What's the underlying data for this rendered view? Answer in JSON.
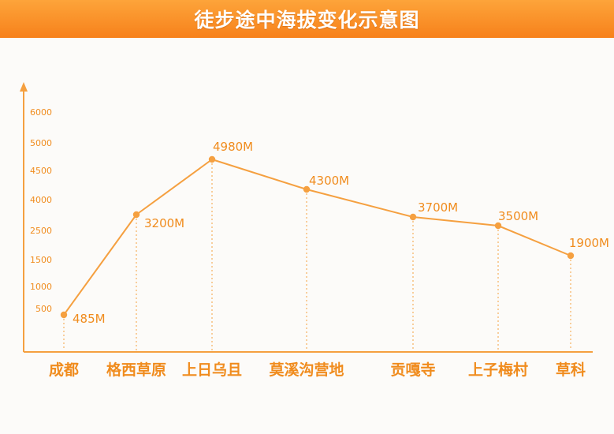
{
  "header": {
    "title": "徒步途中海拔变化示意图"
  },
  "colors": {
    "accent": "#f5a040",
    "text": "#f08c1e",
    "banner_top": "#fda43a",
    "banner_bottom": "#f7811b"
  },
  "chart_data": {
    "type": "line",
    "title": "徒步途中海拔变化示意图",
    "categories": [
      "成都",
      "格西草原",
      "上日乌且",
      "莫溪沟营地",
      "贡嘎寺",
      "上子梅村",
      "草科"
    ],
    "values": [
      485,
      3200,
      4980,
      4300,
      3700,
      3500,
      1900
    ],
    "data_labels": [
      "485M",
      "3200M",
      "4980M",
      "4300M",
      "3700M",
      "3500M",
      "1900M"
    ],
    "y_ticks": [
      "6000",
      "5000",
      "4500",
      "4000",
      "2500",
      "1500",
      "1000",
      "500"
    ],
    "grid": false,
    "legend": "none"
  }
}
